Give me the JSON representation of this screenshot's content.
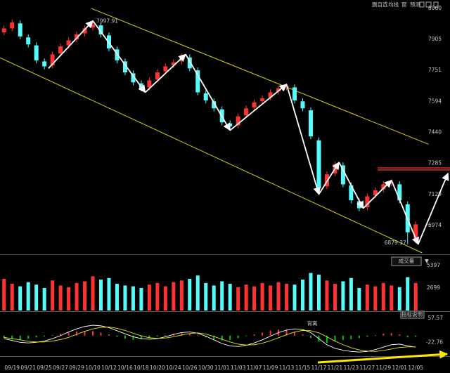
{
  "toolbar": [
    "删自选",
    "均线",
    "窗",
    "预测"
  ],
  "chart_data": [
    {
      "type": "candlestick",
      "categories": [
        null,
        "09/19",
        null,
        "09/21",
        null,
        "09/25",
        null,
        "09/27",
        null,
        "09/29",
        null,
        "10/10",
        null,
        "10/12",
        null,
        "10/16",
        null,
        "10/18",
        null,
        "10/20",
        null,
        "10/24",
        null,
        "10/26",
        null,
        "10/30",
        null,
        "11/01",
        null,
        "11/03",
        null,
        "11/07",
        null,
        "11/09",
        null,
        "11/13",
        null,
        "11/15",
        null,
        "11/17",
        null,
        "11/21",
        null,
        "11/23",
        null,
        "11/27",
        null,
        "11/29",
        null,
        "12/01",
        null,
        "12/05"
      ],
      "open": [
        7940,
        7960,
        7985,
        7915,
        7875,
        7795,
        7775,
        7835,
        7875,
        7905,
        7935,
        7965,
        7975,
        7925,
        7855,
        7795,
        7735,
        7685,
        7665,
        7705,
        7745,
        7775,
        7795,
        7815,
        7750,
        7635,
        7595,
        7555,
        7485,
        7475,
        7525,
        7565,
        7595,
        7615,
        7645,
        7665,
        7665,
        7595,
        7550,
        7400,
        7170,
        7235,
        7275,
        7175,
        7095,
        7065,
        7125,
        7155,
        7185,
        7180,
        7080,
        6900
      ],
      "high": [
        7975,
        8005,
        8000,
        7930,
        7890,
        7810,
        7845,
        7885,
        7915,
        7945,
        7975,
        7997.91,
        7990,
        7940,
        7870,
        7810,
        7750,
        7700,
        7715,
        7755,
        7785,
        7805,
        7835,
        7830,
        7765,
        7650,
        7610,
        7570,
        7500,
        7535,
        7575,
        7605,
        7625,
        7655,
        7675,
        7685,
        7680,
        7610,
        7565,
        7415,
        7245,
        7295,
        7290,
        7190,
        7110,
        7135,
        7165,
        7195,
        7205,
        7195,
        7095,
        6995
      ],
      "low": [
        7925,
        7945,
        7905,
        7865,
        7785,
        7755,
        7760,
        7820,
        7860,
        7890,
        7920,
        7950,
        7915,
        7845,
        7785,
        7725,
        7675,
        7645,
        7650,
        7690,
        7730,
        7760,
        7780,
        7745,
        7625,
        7585,
        7545,
        7475,
        7455,
        7460,
        7510,
        7550,
        7580,
        7600,
        7630,
        7650,
        7585,
        7545,
        7405,
        7145,
        7155,
        7220,
        7165,
        7085,
        7045,
        7050,
        7110,
        7140,
        7170,
        7085,
        6879.37,
        6885
      ],
      "close": [
        7960,
        7990,
        7920,
        7880,
        7800,
        7770,
        7830,
        7870,
        7900,
        7930,
        7960,
        7980,
        7930,
        7860,
        7800,
        7740,
        7690,
        7660,
        7700,
        7740,
        7770,
        7790,
        7820,
        7760,
        7640,
        7600,
        7560,
        7490,
        7470,
        7520,
        7560,
        7590,
        7610,
        7640,
        7660,
        7670,
        7600,
        7560,
        7420,
        7160,
        7230,
        7280,
        7180,
        7100,
        7060,
        7120,
        7150,
        7180,
        7190,
        7100,
        6940,
        6980
      ],
      "up_color": "#ff3232",
      "down_color": "#54fcfc",
      "ylim": [
        6837,
        8102
      ],
      "yticks": [
        8060,
        7905,
        7751,
        7594,
        7440,
        7285,
        7129,
        6974
      ],
      "trend": {
        "color": "#ffffff",
        "x": [
          5.5,
          11,
          17.5,
          22.5,
          28,
          35,
          39,
          41.5,
          44.5,
          48,
          51.3,
          55
        ],
        "values": [
          7760,
          7998,
          7640,
          7830,
          7450,
          7680,
          7130,
          7290,
          7060,
          7200,
          6880,
          7235
        ]
      },
      "channel": {
        "color": "#d8d800",
        "upper": {
          "x": [
            10.8,
            52.6
          ],
          "values": [
            8060,
            7380
          ]
        },
        "lower": {
          "x": [
            -0.5,
            51.8
          ],
          "values": [
            7813,
            6837
          ]
        }
      },
      "resistance": {
        "value": 7257,
        "color": "#ff3030"
      }
    },
    {
      "type": "bar",
      "title": "成交量",
      "values": [
        3800,
        3200,
        2900,
        3400,
        3100,
        2700,
        3600,
        3000,
        2800,
        3300,
        3500,
        4100,
        3700,
        3900,
        3200,
        3000,
        2900,
        2700,
        3100,
        3300,
        2900,
        3400,
        3600,
        3800,
        4200,
        3300,
        3000,
        3500,
        3200,
        2800,
        3100,
        2900,
        3300,
        3000,
        3400,
        3200,
        3100,
        3700,
        4500,
        4300,
        3600,
        3200,
        3500,
        3900,
        2700,
        3100,
        2900,
        3300,
        3000,
        2800,
        4000,
        3300
      ],
      "ylim": [
        0,
        6490
      ],
      "yticks": [
        5397,
        2699
      ]
    },
    {
      "type": "macd",
      "title": "指标说明",
      "annotation": "背离",
      "values": [
        -8,
        -12,
        -15,
        -10,
        -6,
        -3,
        2,
        6,
        10,
        14,
        16,
        15,
        10,
        4,
        -4,
        -10,
        -14,
        -12,
        -8,
        -3,
        2,
        6,
        8,
        7,
        2,
        -6,
        -12,
        -16,
        -14,
        -8,
        -2,
        4,
        10,
        16,
        20,
        18,
        12,
        4,
        -8,
        -20,
        -24,
        -18,
        -14,
        -12,
        -8,
        -4,
        2,
        6,
        8,
        4,
        -6,
        -4
      ],
      "up_color": "#ff3232",
      "down_color": "#00c800",
      "series": [
        {
          "color": "#ffffff",
          "values": [
            -10,
            -16,
            -22,
            -24,
            -22,
            -18,
            -10,
            0,
            12,
            22,
            30,
            34,
            32,
            26,
            16,
            6,
            -4,
            -10,
            -12,
            -10,
            -4,
            4,
            10,
            12,
            8,
            -2,
            -14,
            -26,
            -34,
            -36,
            -32,
            -24,
            -14,
            -2,
            10,
            18,
            22,
            20,
            10,
            -10,
            -30,
            -42,
            -48,
            -52,
            -54,
            -52,
            -46,
            -38,
            -30,
            -28,
            -34,
            -38
          ]
        },
        {
          "color": "#e8e800",
          "values": [
            -6,
            -10,
            -14,
            -19,
            -21,
            -21,
            -18,
            -13,
            -6,
            4,
            14,
            22,
            27,
            28,
            24,
            17,
            8,
            -1,
            -7,
            -9,
            -8,
            -4,
            2,
            7,
            9,
            5,
            -3,
            -12,
            -21,
            -28,
            -31,
            -30,
            -25,
            -17,
            -7,
            3,
            12,
            17,
            16,
            9,
            -4,
            -18,
            -30,
            -40,
            -47,
            -51,
            -52,
            -49,
            -44,
            -39,
            -37,
            -37
          ]
        }
      ],
      "ylim": [
        -62.9,
        70.96
      ],
      "yticks": [
        57.57,
        -22.76
      ]
    }
  ]
}
